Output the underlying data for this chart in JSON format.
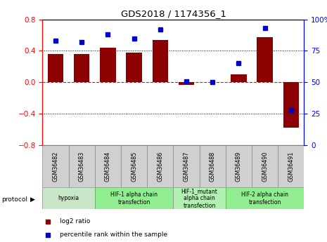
{
  "title": "GDS2018 / 1174356_1",
  "samples": [
    "GSM36482",
    "GSM36483",
    "GSM36484",
    "GSM36485",
    "GSM36486",
    "GSM36487",
    "GSM36488",
    "GSM36489",
    "GSM36490",
    "GSM36491"
  ],
  "log2_ratio": [
    0.36,
    0.36,
    0.44,
    0.38,
    0.54,
    -0.03,
    0.0,
    0.1,
    0.57,
    -0.58
  ],
  "percentile_rank": [
    83,
    82,
    88,
    85,
    92,
    51,
    50,
    65,
    93,
    28
  ],
  "bar_color": "#8B0000",
  "dot_color": "#0000CC",
  "ylim_left": [
    -0.8,
    0.8
  ],
  "ylim_right": [
    0,
    100
  ],
  "yticks_left": [
    -0.8,
    -0.4,
    0.0,
    0.4,
    0.8
  ],
  "yticks_right": [
    0,
    25,
    50,
    75,
    100
  ],
  "ytick_labels_right": [
    "0",
    "25",
    "50",
    "75",
    "100%"
  ],
  "hline_red": 0.0,
  "hlines_dotted": [
    -0.4,
    0.4
  ],
  "protocols": [
    {
      "label": "hypoxia",
      "samples": [
        0,
        1
      ],
      "color": "#c8e6c8"
    },
    {
      "label": "HIF-1 alpha chain\ntransfection",
      "samples": [
        2,
        3,
        4
      ],
      "color": "#90ee90"
    },
    {
      "label": "HIF-1_mutant\nalpha chain\ntransfection",
      "samples": [
        5,
        6
      ],
      "color": "#b0f0b0"
    },
    {
      "label": "HIF-2 alpha chain\ntransfection",
      "samples": [
        7,
        8,
        9
      ],
      "color": "#90ee90"
    }
  ],
  "protocol_label": "protocol",
  "legend_items": [
    {
      "color": "#8B0000",
      "label": "log2 ratio"
    },
    {
      "color": "#0000CC",
      "label": "percentile rank within the sample"
    }
  ]
}
